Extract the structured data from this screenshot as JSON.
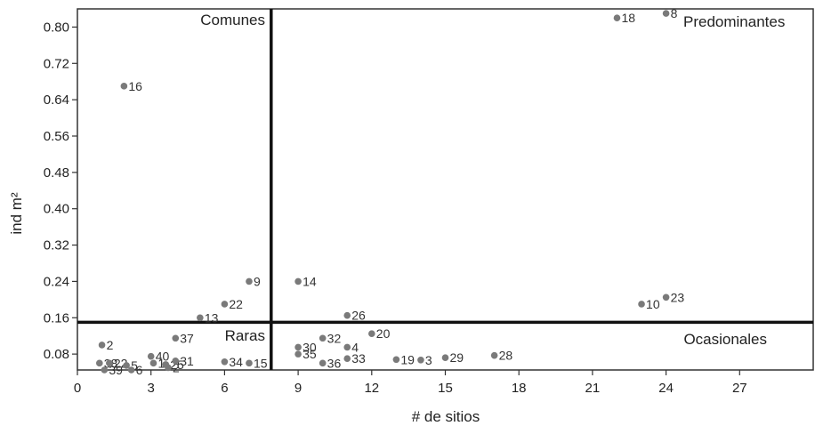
{
  "chart_data": {
    "type": "scatter",
    "title": "",
    "xlabel": "# de sitios",
    "ylabel": "ind m²",
    "xlim": [
      0,
      30
    ],
    "ylim": [
      0.045,
      0.84
    ],
    "xticks": [
      0,
      3,
      6,
      9,
      12,
      15,
      18,
      21,
      24,
      27
    ],
    "yticks": [
      0.08,
      0.16,
      0.24,
      0.32,
      0.4,
      0.48,
      0.56,
      0.64,
      0.72,
      0.8
    ],
    "xtick_labels": [
      "0",
      "3",
      "6",
      "9",
      "12",
      "15",
      "18",
      "21",
      "24",
      "27"
    ],
    "ytick_labels": [
      "0.08",
      "0.16",
      "0.24",
      "0.32",
      "0.40",
      "0.48",
      "0.56",
      "0.64",
      "0.72",
      "0.80"
    ],
    "grid": false,
    "marker_color": "#7a7a7a",
    "divider_x": 7.9,
    "divider_y": 0.15,
    "quadrant_labels": {
      "top_left": "Comunes",
      "top_right": "Predominantes",
      "bottom_left": "Raras",
      "bottom_right": "Ocasionales"
    },
    "points": [
      {
        "label": "16",
        "x": 1.9,
        "y": 0.67
      },
      {
        "label": "18",
        "x": 22.0,
        "y": 0.82
      },
      {
        "label": "8",
        "x": 24.0,
        "y": 0.83
      },
      {
        "label": "9",
        "x": 7.0,
        "y": 0.24
      },
      {
        "label": "22",
        "x": 6.0,
        "y": 0.19
      },
      {
        "label": "13",
        "x": 5.0,
        "y": 0.16
      },
      {
        "label": "14",
        "x": 9.0,
        "y": 0.24
      },
      {
        "label": "26",
        "x": 11.0,
        "y": 0.165
      },
      {
        "label": "10",
        "x": 23.0,
        "y": 0.19
      },
      {
        "label": "23",
        "x": 24.0,
        "y": 0.205
      },
      {
        "label": "2",
        "x": 1.0,
        "y": 0.1
      },
      {
        "label": "38",
        "x": 0.9,
        "y": 0.06
      },
      {
        "label": "22",
        "x": 1.3,
        "y": 0.06
      },
      {
        "label": "5",
        "x": 2.0,
        "y": 0.055
      },
      {
        "label": "39",
        "x": 1.1,
        "y": 0.045
      },
      {
        "label": "6",
        "x": 2.2,
        "y": 0.045
      },
      {
        "label": "37",
        "x": 4.0,
        "y": 0.115
      },
      {
        "label": "40",
        "x": 3.0,
        "y": 0.075
      },
      {
        "label": "1",
        "x": 3.1,
        "y": 0.06
      },
      {
        "label": "25",
        "x": 3.6,
        "y": 0.057
      },
      {
        "label": "2",
        "x": 3.7,
        "y": 0.05
      },
      {
        "label": "31",
        "x": 4.0,
        "y": 0.065
      },
      {
        "label": "34",
        "x": 6.0,
        "y": 0.063
      },
      {
        "label": "15",
        "x": 7.0,
        "y": 0.06
      },
      {
        "label": "30",
        "x": 9.0,
        "y": 0.095
      },
      {
        "label": "35",
        "x": 9.0,
        "y": 0.08
      },
      {
        "label": "32",
        "x": 10.0,
        "y": 0.115
      },
      {
        "label": "4",
        "x": 11.0,
        "y": 0.095
      },
      {
        "label": "36",
        "x": 10.0,
        "y": 0.06
      },
      {
        "label": "33",
        "x": 11.0,
        "y": 0.07
      },
      {
        "label": "20",
        "x": 12.0,
        "y": 0.125
      },
      {
        "label": "19",
        "x": 13.0,
        "y": 0.068
      },
      {
        "label": "3",
        "x": 14.0,
        "y": 0.067
      },
      {
        "label": "29",
        "x": 15.0,
        "y": 0.072
      },
      {
        "label": "28",
        "x": 17.0,
        "y": 0.077
      }
    ]
  }
}
